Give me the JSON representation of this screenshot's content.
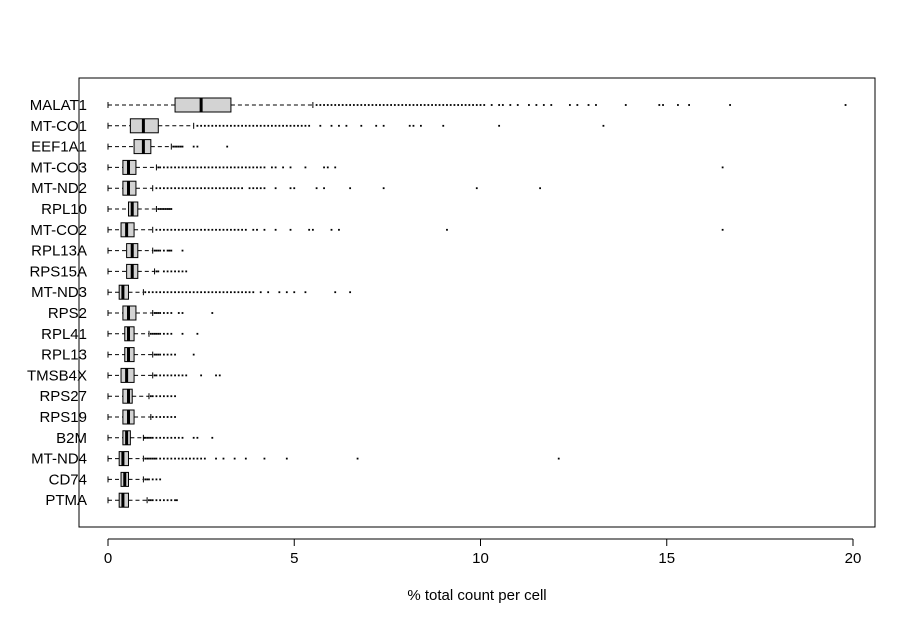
{
  "chart_data": {
    "type": "boxplot",
    "orientation": "horizontal",
    "xlabel": "% total count per cell",
    "ylabel": "",
    "title": "",
    "xlim": [
      0,
      20
    ],
    "xticks": [
      0,
      5,
      10,
      15,
      20
    ],
    "grid": false,
    "legend": "none",
    "box_fill": "#d3d3d3",
    "outlier_color": "#000000",
    "genes": [
      {
        "name": "MALAT1",
        "whisker_low": 0.0,
        "q1": 1.8,
        "median": 2.5,
        "q3": 3.3,
        "whisker_high": 5.5,
        "outliers": [
          5.6,
          5.7,
          5.8,
          5.9,
          6.0,
          6.1,
          6.2,
          6.3,
          6.4,
          6.5,
          6.6,
          6.7,
          6.8,
          6.9,
          7.0,
          7.1,
          7.2,
          7.3,
          7.4,
          7.5,
          7.6,
          7.7,
          7.8,
          7.9,
          8.0,
          8.1,
          8.2,
          8.3,
          8.4,
          8.5,
          8.6,
          8.7,
          8.8,
          8.9,
          9.0,
          9.1,
          9.2,
          9.3,
          9.4,
          9.5,
          9.6,
          9.7,
          9.8,
          9.9,
          10.0,
          10.1,
          10.3,
          10.5,
          10.6,
          10.8,
          11.0,
          11.3,
          11.5,
          11.7,
          11.9,
          12.4,
          12.6,
          12.9,
          13.1,
          13.9,
          14.8,
          14.9,
          15.3,
          15.6,
          16.7,
          19.8
        ]
      },
      {
        "name": "MT-CO1",
        "whisker_low": 0.0,
        "q1": 0.6,
        "median": 0.95,
        "q3": 1.35,
        "whisker_high": 2.3,
        "outliers": [
          2.4,
          2.5,
          2.6,
          2.7,
          2.8,
          2.9,
          3.0,
          3.1,
          3.2,
          3.3,
          3.4,
          3.5,
          3.6,
          3.7,
          3.8,
          3.9,
          4.0,
          4.1,
          4.2,
          4.3,
          4.4,
          4.5,
          4.6,
          4.7,
          4.8,
          4.9,
          5.0,
          5.1,
          5.2,
          5.3,
          5.4,
          5.7,
          6.0,
          6.2,
          6.4,
          6.8,
          7.2,
          7.4,
          8.1,
          8.2,
          8.4,
          9.0,
          10.5,
          13.3
        ]
      },
      {
        "name": "EEF1A1",
        "whisker_low": 0.0,
        "q1": 0.7,
        "median": 0.95,
        "q3": 1.15,
        "whisker_high": 1.7,
        "outliers": [
          1.75,
          1.8,
          1.85,
          1.9,
          1.95,
          2.0,
          2.3,
          2.4,
          3.2
        ]
      },
      {
        "name": "MT-CO3",
        "whisker_low": 0.0,
        "q1": 0.4,
        "median": 0.55,
        "q3": 0.75,
        "whisker_high": 1.3,
        "outliers": [
          1.35,
          1.4,
          1.5,
          1.6,
          1.7,
          1.8,
          1.9,
          2.0,
          2.1,
          2.2,
          2.3,
          2.4,
          2.5,
          2.6,
          2.7,
          2.8,
          2.9,
          3.0,
          3.1,
          3.2,
          3.3,
          3.4,
          3.5,
          3.6,
          3.7,
          3.8,
          3.9,
          4.0,
          4.1,
          4.2,
          4.4,
          4.5,
          4.7,
          4.9,
          5.3,
          5.8,
          5.9,
          6.1,
          16.5
        ]
      },
      {
        "name": "MT-ND2",
        "whisker_low": 0.0,
        "q1": 0.4,
        "median": 0.55,
        "q3": 0.75,
        "whisker_high": 1.2,
        "outliers": [
          1.3,
          1.4,
          1.5,
          1.6,
          1.7,
          1.8,
          1.9,
          2.0,
          2.1,
          2.2,
          2.3,
          2.4,
          2.5,
          2.6,
          2.7,
          2.8,
          2.9,
          3.0,
          3.1,
          3.2,
          3.3,
          3.4,
          3.5,
          3.6,
          3.8,
          3.9,
          4.0,
          4.1,
          4.2,
          4.5,
          4.9,
          5.0,
          5.6,
          5.8,
          6.5,
          7.4,
          9.9,
          11.6
        ]
      },
      {
        "name": "RPL10",
        "whisker_low": 0.0,
        "q1": 0.55,
        "median": 0.65,
        "q3": 0.8,
        "whisker_high": 1.3,
        "outliers": [
          1.35,
          1.4,
          1.45,
          1.5,
          1.55,
          1.6,
          1.65,
          1.7
        ]
      },
      {
        "name": "MT-CO2",
        "whisker_low": 0.0,
        "q1": 0.35,
        "median": 0.5,
        "q3": 0.7,
        "whisker_high": 1.2,
        "outliers": [
          1.3,
          1.4,
          1.5,
          1.6,
          1.7,
          1.8,
          1.9,
          2.0,
          2.1,
          2.2,
          2.3,
          2.4,
          2.5,
          2.6,
          2.7,
          2.8,
          2.9,
          3.0,
          3.1,
          3.2,
          3.3,
          3.4,
          3.5,
          3.6,
          3.7,
          3.9,
          4.0,
          4.2,
          4.5,
          4.9,
          5.4,
          5.5,
          6.0,
          6.2,
          9.1,
          16.5
        ]
      },
      {
        "name": "RPL13A",
        "whisker_low": 0.0,
        "q1": 0.5,
        "median": 0.65,
        "q3": 0.8,
        "whisker_high": 1.2,
        "outliers": [
          1.25,
          1.3,
          1.35,
          1.4,
          1.5,
          1.6,
          1.65,
          1.7,
          2.0
        ]
      },
      {
        "name": "RPS15A",
        "whisker_low": 0.0,
        "q1": 0.5,
        "median": 0.65,
        "q3": 0.8,
        "whisker_high": 1.25,
        "outliers": [
          1.3,
          1.35,
          1.5,
          1.6,
          1.7,
          1.8,
          1.9,
          2.0,
          2.1
        ]
      },
      {
        "name": "MT-ND3",
        "whisker_low": 0.0,
        "q1": 0.3,
        "median": 0.4,
        "q3": 0.55,
        "whisker_high": 0.95,
        "outliers": [
          1.0,
          1.1,
          1.2,
          1.3,
          1.4,
          1.5,
          1.6,
          1.7,
          1.8,
          1.9,
          2.0,
          2.1,
          2.2,
          2.3,
          2.4,
          2.5,
          2.6,
          2.7,
          2.8,
          2.9,
          3.0,
          3.1,
          3.2,
          3.3,
          3.4,
          3.5,
          3.6,
          3.7,
          3.8,
          3.9,
          4.1,
          4.3,
          4.6,
          4.8,
          5.0,
          5.3,
          6.1,
          6.5
        ]
      },
      {
        "name": "RPS2",
        "whisker_low": 0.0,
        "q1": 0.4,
        "median": 0.55,
        "q3": 0.75,
        "whisker_high": 1.2,
        "outliers": [
          1.25,
          1.3,
          1.35,
          1.4,
          1.5,
          1.6,
          1.7,
          1.9,
          2.0,
          2.8
        ]
      },
      {
        "name": "RPL41",
        "whisker_low": 0.0,
        "q1": 0.45,
        "median": 0.55,
        "q3": 0.7,
        "whisker_high": 1.1,
        "outliers": [
          1.15,
          1.2,
          1.25,
          1.3,
          1.35,
          1.4,
          1.5,
          1.6,
          1.7,
          2.0,
          2.4
        ]
      },
      {
        "name": "RPL13",
        "whisker_low": 0.0,
        "q1": 0.45,
        "median": 0.55,
        "q3": 0.7,
        "whisker_high": 1.2,
        "outliers": [
          1.25,
          1.3,
          1.35,
          1.4,
          1.5,
          1.6,
          1.7,
          1.8,
          2.3
        ]
      },
      {
        "name": "TMSB4X",
        "whisker_low": 0.0,
        "q1": 0.35,
        "median": 0.5,
        "q3": 0.7,
        "whisker_high": 1.2,
        "outliers": [
          1.25,
          1.3,
          1.4,
          1.5,
          1.6,
          1.7,
          1.8,
          1.9,
          2.0,
          2.1,
          2.5,
          2.9,
          3.0
        ]
      },
      {
        "name": "RPS27",
        "whisker_low": 0.0,
        "q1": 0.4,
        "median": 0.55,
        "q3": 0.65,
        "whisker_high": 1.1,
        "outliers": [
          1.15,
          1.2,
          1.3,
          1.4,
          1.5,
          1.6,
          1.7,
          1.8
        ]
      },
      {
        "name": "RPS19",
        "whisker_low": 0.0,
        "q1": 0.4,
        "median": 0.55,
        "q3": 0.7,
        "whisker_high": 1.15,
        "outliers": [
          1.2,
          1.3,
          1.4,
          1.5,
          1.6,
          1.7,
          1.8
        ]
      },
      {
        "name": "B2M",
        "whisker_low": 0.0,
        "q1": 0.4,
        "median": 0.5,
        "q3": 0.6,
        "whisker_high": 0.95,
        "outliers": [
          0.97,
          1.0,
          1.05,
          1.1,
          1.15,
          1.2,
          1.3,
          1.4,
          1.5,
          1.6,
          1.7,
          1.8,
          1.9,
          2.0,
          2.3,
          2.4,
          2.8
        ]
      },
      {
        "name": "MT-ND4",
        "whisker_low": 0.0,
        "q1": 0.3,
        "median": 0.4,
        "q3": 0.55,
        "whisker_high": 0.95,
        "outliers": [
          1.0,
          1.05,
          1.1,
          1.15,
          1.2,
          1.25,
          1.3,
          1.4,
          1.5,
          1.6,
          1.7,
          1.8,
          1.9,
          2.0,
          2.1,
          2.2,
          2.3,
          2.4,
          2.5,
          2.6,
          2.9,
          3.1,
          3.4,
          3.7,
          4.2,
          4.8,
          6.7,
          12.1
        ]
      },
      {
        "name": "CD74",
        "whisker_low": 0.0,
        "q1": 0.35,
        "median": 0.45,
        "q3": 0.55,
        "whisker_high": 0.95,
        "outliers": [
          1.0,
          1.05,
          1.1,
          1.2,
          1.3,
          1.4
        ]
      },
      {
        "name": "PTMA",
        "whisker_low": 0.0,
        "q1": 0.3,
        "median": 0.4,
        "q3": 0.55,
        "whisker_high": 1.05,
        "outliers": [
          1.1,
          1.15,
          1.2,
          1.3,
          1.4,
          1.5,
          1.6,
          1.7,
          1.8,
          1.85
        ]
      }
    ]
  }
}
